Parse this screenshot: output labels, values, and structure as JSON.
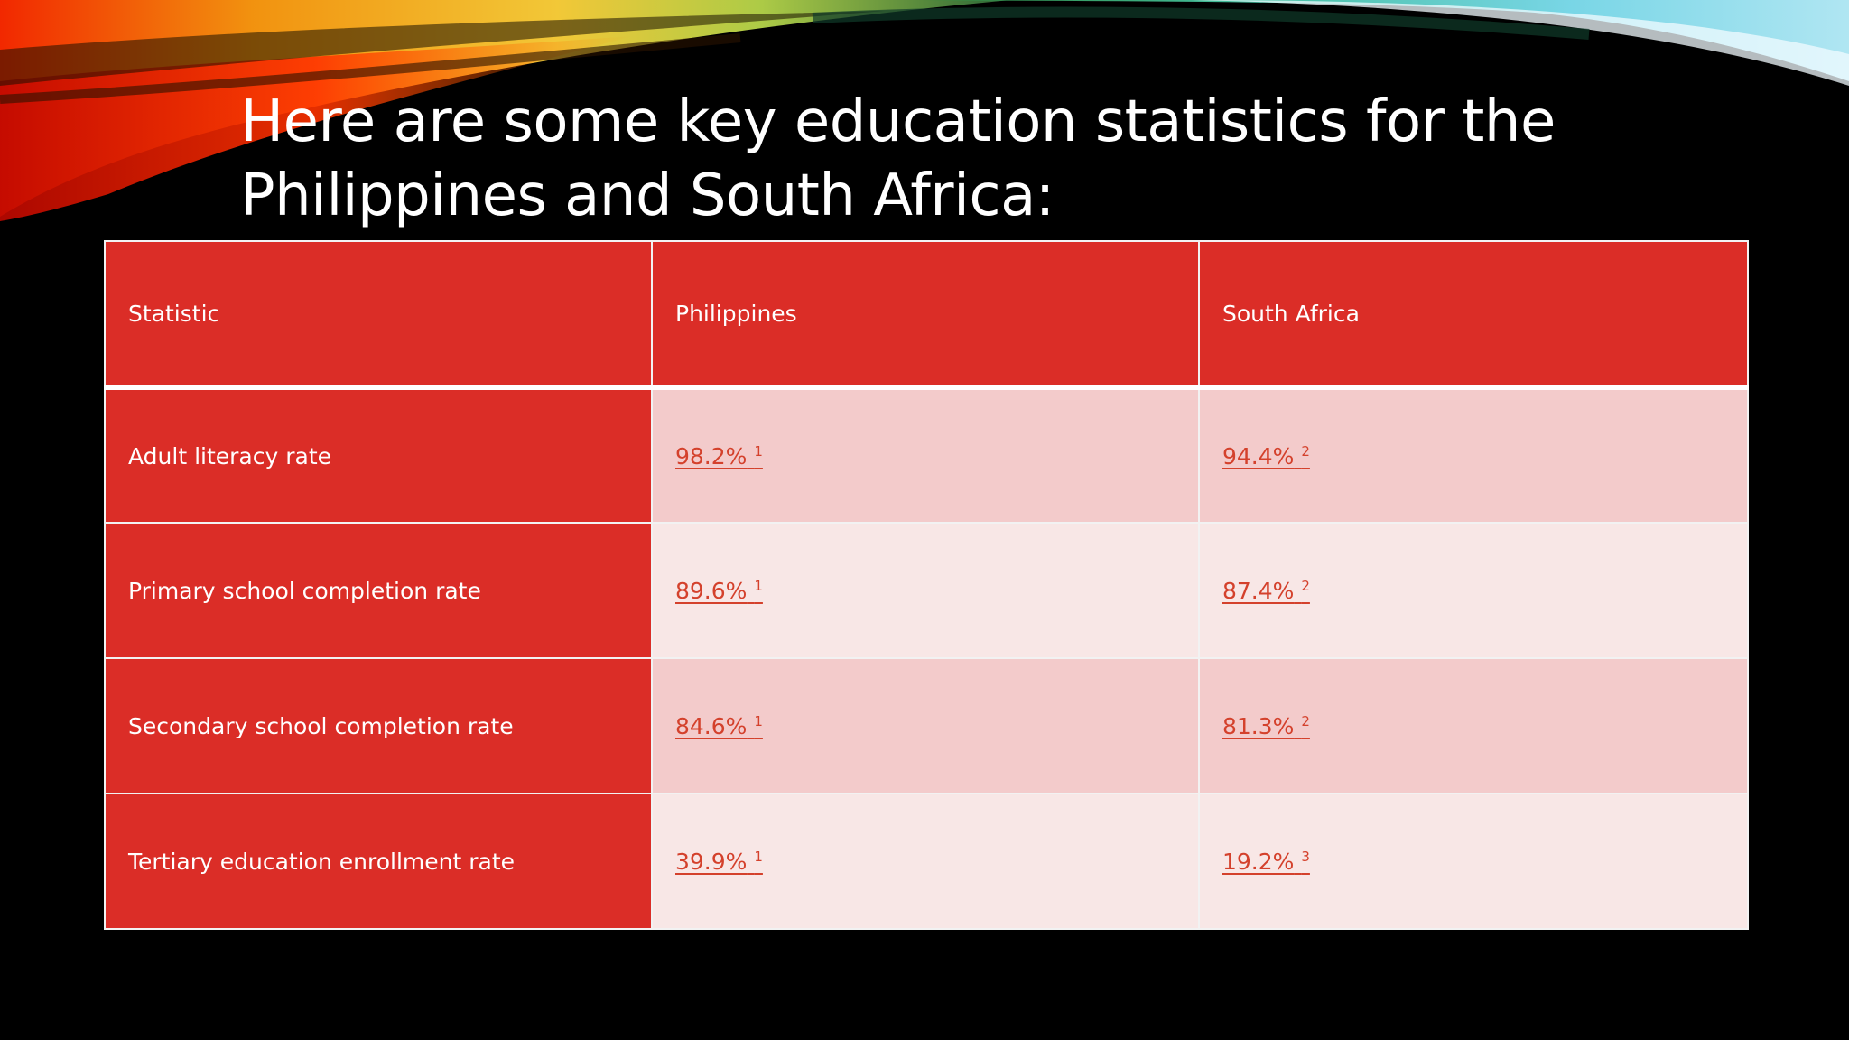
{
  "slide": {
    "title_line1": "Here are some key education statistics for the",
    "title_line2": "Philippines and South Africa:"
  },
  "table": {
    "headers": [
      "Statistic",
      "Philippines",
      "South Africa"
    ],
    "rows": [
      {
        "label": "Adult literacy rate",
        "philippines": {
          "value": "98.2%",
          "ref": "1"
        },
        "south_africa": {
          "value": "94.4%",
          "ref": "2"
        }
      },
      {
        "label": "Primary school completion rate",
        "philippines": {
          "value": "89.6%",
          "ref": "1"
        },
        "south_africa": {
          "value": "87.4%",
          "ref": "2"
        }
      },
      {
        "label": "Secondary school completion rate",
        "philippines": {
          "value": "84.6%",
          "ref": "1"
        },
        "south_africa": {
          "value": "81.3%",
          "ref": "2"
        }
      },
      {
        "label": "Tertiary education enrollment rate",
        "philippines": {
          "value": "39.9%",
          "ref": "1"
        },
        "south_africa": {
          "value": "19.2%",
          "ref": "3"
        }
      }
    ]
  },
  "colors": {
    "header_red": "#db2d27",
    "row_band_dark": "#f3cbcb",
    "row_band_light": "#f8e7e6",
    "link_color": "#d4412c",
    "background": "#000000"
  }
}
